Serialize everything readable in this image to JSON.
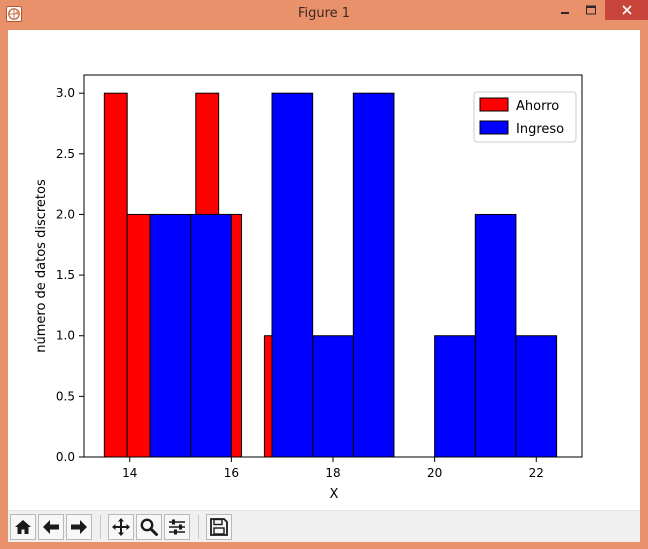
{
  "window": {
    "title": "Figure 1",
    "frame_color": "#e9916a",
    "close_color": "#c7453a"
  },
  "toolbar": {
    "buttons": [
      {
        "name": "home",
        "icon": "home-icon"
      },
      {
        "name": "back",
        "icon": "arrow-left-icon"
      },
      {
        "name": "forward",
        "icon": "arrow-right-icon"
      },
      {
        "name": "pan",
        "icon": "move-icon"
      },
      {
        "name": "zoom",
        "icon": "magnifier-icon"
      },
      {
        "name": "configure-subplots",
        "icon": "sliders-icon"
      },
      {
        "name": "save",
        "icon": "floppy-icon"
      }
    ]
  },
  "chart_data": {
    "type": "bar",
    "title": "",
    "xlabel": "X",
    "ylabel": "número de datos discretos",
    "xlim": [
      13.1,
      22.9
    ],
    "ylim": [
      0,
      3.15
    ],
    "xticks": [
      14,
      16,
      18,
      20,
      22
    ],
    "yticks": [
      0.0,
      0.5,
      1.0,
      1.5,
      2.0,
      2.5,
      3.0
    ],
    "xtick_labels": [
      "14",
      "16",
      "18",
      "20",
      "22"
    ],
    "ytick_labels": [
      "0.0",
      "0.5",
      "1.0",
      "1.5",
      "2.0",
      "2.5",
      "3.0"
    ],
    "grid": false,
    "legend": {
      "position": "top-right"
    },
    "series": [
      {
        "name": "Ahorro",
        "color": "#ff0000",
        "bins": [
          {
            "x0": 13.5,
            "x1": 13.95,
            "count": 3
          },
          {
            "x0": 13.95,
            "x1": 14.4,
            "count": 2
          },
          {
            "x0": 14.4,
            "x1": 14.85,
            "count": 2
          },
          {
            "x0": 14.85,
            "x1": 15.3,
            "count": 0
          },
          {
            "x0": 15.3,
            "x1": 15.75,
            "count": 3
          },
          {
            "x0": 15.75,
            "x1": 16.2,
            "count": 2
          },
          {
            "x0": 16.2,
            "x1": 16.65,
            "count": 0
          },
          {
            "x0": 16.65,
            "x1": 17.1,
            "count": 1
          }
        ]
      },
      {
        "name": "Ingreso",
        "color": "#0000ff",
        "bins": [
          {
            "x0": 14.4,
            "x1": 15.2,
            "count": 2
          },
          {
            "x0": 15.2,
            "x1": 16.0,
            "count": 2
          },
          {
            "x0": 16.0,
            "x1": 16.8,
            "count": 0
          },
          {
            "x0": 16.8,
            "x1": 17.6,
            "count": 3
          },
          {
            "x0": 17.6,
            "x1": 18.4,
            "count": 1
          },
          {
            "x0": 18.4,
            "x1": 19.2,
            "count": 3
          },
          {
            "x0": 19.2,
            "x1": 20.0,
            "count": 0
          },
          {
            "x0": 20.0,
            "x1": 20.8,
            "count": 1
          },
          {
            "x0": 20.8,
            "x1": 21.6,
            "count": 2
          },
          {
            "x0": 21.6,
            "x1": 22.4,
            "count": 1
          }
        ]
      }
    ]
  }
}
